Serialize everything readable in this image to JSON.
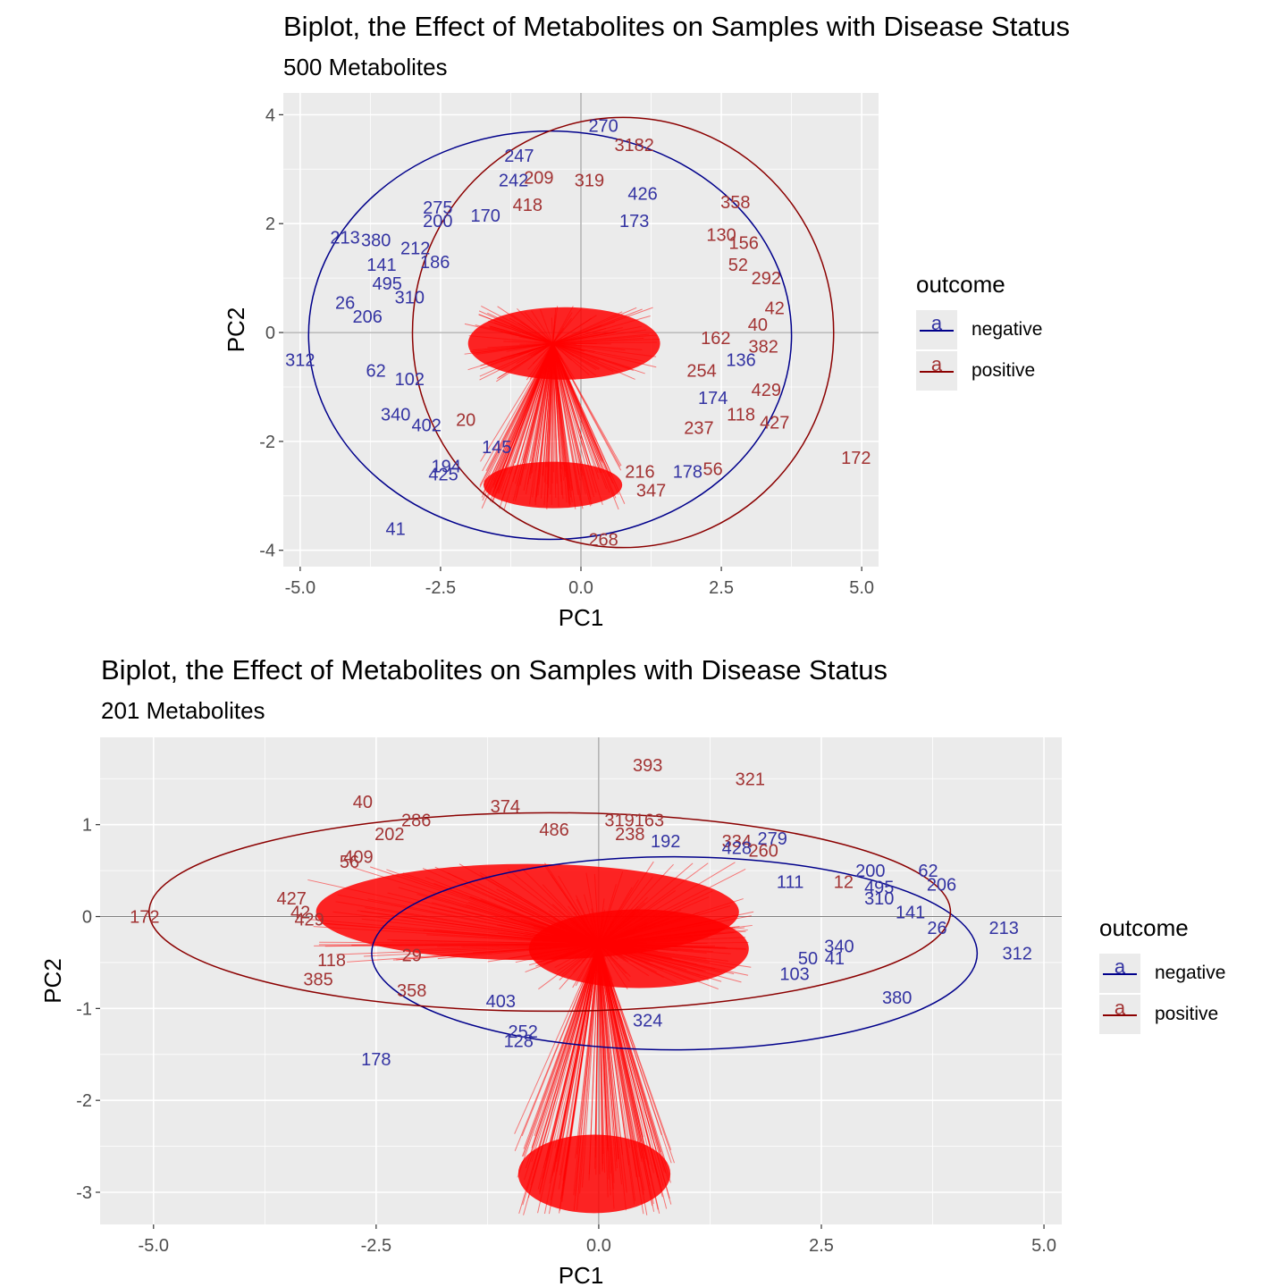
{
  "colors": {
    "negative": "#00008b",
    "positive": "#8b0000",
    "negative_label": "#3333a2",
    "positive_label": "#a23333",
    "arrow": "#ff0000",
    "panel": "#ebebeb",
    "grid": "#ffffff"
  },
  "charts": [
    {
      "title": "Biplot, the Effect of Metabolites on Samples with Disease Status",
      "subtitle": "500 Metabolites",
      "legend": {
        "title": "outcome",
        "key_glyph": "a",
        "items": [
          "negative",
          "positive"
        ]
      },
      "chart_data": {
        "type": "scatter",
        "xlabel": "PC1",
        "ylabel": "PC2",
        "xlim": [
          -5.3,
          5.3
        ],
        "ylim": [
          -4.3,
          4.4
        ],
        "xticks": [
          -5.0,
          -2.5,
          0.0,
          2.5,
          5.0
        ],
        "xtick_labels": [
          "-5.0",
          "-2.5",
          "0.0",
          "2.5",
          "5.0"
        ],
        "yticks": [
          -4,
          -2,
          0,
          2,
          4
        ],
        "ytick_labels": [
          "-4",
          "-2",
          "0",
          "2",
          "4"
        ],
        "ellipses": [
          {
            "group": "negative",
            "cx": -0.55,
            "cy": -0.05,
            "rx": 4.3,
            "ry": 3.75
          },
          {
            "group": "positive",
            "cx": 0.75,
            "cy": 0.0,
            "rx": 3.75,
            "ry": 3.95
          }
        ],
        "points": [
          {
            "label": "270",
            "x": 0.4,
            "y": 3.8,
            "group": "negative"
          },
          {
            "label": "3182",
            "x": 0.95,
            "y": 3.45,
            "group": "positive"
          },
          {
            "label": "247",
            "x": -1.1,
            "y": 3.25,
            "group": "negative"
          },
          {
            "label": "242",
            "x": -1.2,
            "y": 2.8,
            "group": "negative"
          },
          {
            "label": "209",
            "x": -0.75,
            "y": 2.85,
            "group": "positive"
          },
          {
            "label": "319",
            "x": 0.15,
            "y": 2.8,
            "group": "positive"
          },
          {
            "label": "426",
            "x": 1.1,
            "y": 2.55,
            "group": "negative"
          },
          {
            "label": "358",
            "x": 2.75,
            "y": 2.4,
            "group": "positive"
          },
          {
            "label": "418",
            "x": -0.95,
            "y": 2.35,
            "group": "positive"
          },
          {
            "label": "173",
            "x": 0.95,
            "y": 2.05,
            "group": "negative"
          },
          {
            "label": "275",
            "x": -2.55,
            "y": 2.3,
            "group": "negative"
          },
          {
            "label": "200",
            "x": -2.55,
            "y": 2.05,
            "group": "negative"
          },
          {
            "label": "170",
            "x": -1.7,
            "y": 2.15,
            "group": "negative"
          },
          {
            "label": "213",
            "x": -4.2,
            "y": 1.75,
            "group": "negative"
          },
          {
            "label": "380",
            "x": -3.65,
            "y": 1.7,
            "group": "negative"
          },
          {
            "label": "212",
            "x": -2.95,
            "y": 1.55,
            "group": "negative"
          },
          {
            "label": "186",
            "x": -2.6,
            "y": 1.3,
            "group": "negative"
          },
          {
            "label": "141",
            "x": -3.55,
            "y": 1.25,
            "group": "negative"
          },
          {
            "label": "156",
            "x": 2.9,
            "y": 1.65,
            "group": "positive"
          },
          {
            "label": "130",
            "x": 2.5,
            "y": 1.8,
            "group": "positive"
          },
          {
            "label": "52",
            "x": 2.8,
            "y": 1.25,
            "group": "positive"
          },
          {
            "label": "292",
            "x": 3.3,
            "y": 1.0,
            "group": "positive"
          },
          {
            "label": "495",
            "x": -3.45,
            "y": 0.9,
            "group": "negative"
          },
          {
            "label": "310",
            "x": -3.05,
            "y": 0.65,
            "group": "negative"
          },
          {
            "label": "26",
            "x": -4.2,
            "y": 0.55,
            "group": "negative"
          },
          {
            "label": "206",
            "x": -3.8,
            "y": 0.3,
            "group": "negative"
          },
          {
            "label": "42",
            "x": 3.45,
            "y": 0.45,
            "group": "positive"
          },
          {
            "label": "40",
            "x": 3.15,
            "y": 0.15,
            "group": "positive"
          },
          {
            "label": "162",
            "x": 2.4,
            "y": -0.1,
            "group": "positive"
          },
          {
            "label": "382",
            "x": 3.25,
            "y": -0.25,
            "group": "positive"
          },
          {
            "label": "136",
            "x": 2.85,
            "y": -0.5,
            "group": "negative"
          },
          {
            "label": "312",
            "x": -5.0,
            "y": -0.5,
            "group": "negative"
          },
          {
            "label": "62",
            "x": -3.65,
            "y": -0.7,
            "group": "negative"
          },
          {
            "label": "102",
            "x": -3.05,
            "y": -0.85,
            "group": "negative"
          },
          {
            "label": "254",
            "x": 2.15,
            "y": -0.7,
            "group": "positive"
          },
          {
            "label": "429",
            "x": 3.3,
            "y": -1.05,
            "group": "positive"
          },
          {
            "label": "174",
            "x": 2.35,
            "y": -1.2,
            "group": "negative"
          },
          {
            "label": "340",
            "x": -3.3,
            "y": -1.5,
            "group": "negative"
          },
          {
            "label": "402",
            "x": -2.75,
            "y": -1.7,
            "group": "negative"
          },
          {
            "label": "20",
            "x": -2.05,
            "y": -1.6,
            "group": "positive"
          },
          {
            "label": "118",
            "x": 2.85,
            "y": -1.5,
            "group": "positive"
          },
          {
            "label": "427",
            "x": 3.45,
            "y": -1.65,
            "group": "positive"
          },
          {
            "label": "237",
            "x": 2.1,
            "y": -1.75,
            "group": "positive"
          },
          {
            "label": "145",
            "x": -1.5,
            "y": -2.1,
            "group": "negative"
          },
          {
            "label": "172",
            "x": 4.9,
            "y": -2.3,
            "group": "positive"
          },
          {
            "label": "178",
            "x": 1.9,
            "y": -2.55,
            "group": "negative"
          },
          {
            "label": "56",
            "x": 2.35,
            "y": -2.5,
            "group": "positive"
          },
          {
            "label": "216",
            "x": 1.05,
            "y": -2.55,
            "group": "positive"
          },
          {
            "label": "194",
            "x": -2.4,
            "y": -2.45,
            "group": "negative"
          },
          {
            "label": "425",
            "x": -2.45,
            "y": -2.6,
            "group": "negative"
          },
          {
            "label": "347",
            "x": 1.25,
            "y": -2.9,
            "group": "positive"
          },
          {
            "label": "41",
            "x": -3.3,
            "y": -3.6,
            "group": "negative"
          },
          {
            "label": "268",
            "x": 0.4,
            "y": -3.8,
            "group": "positive"
          }
        ]
      }
    },
    {
      "title": "Biplot, the Effect of Metabolites on Samples with Disease Status",
      "subtitle": "201 Metabolites",
      "legend": {
        "title": "outcome",
        "key_glyph": "a",
        "items": [
          "negative",
          "positive"
        ]
      },
      "chart_data": {
        "type": "scatter",
        "xlabel": "PC1",
        "ylabel": "PC2",
        "xlim": [
          -5.6,
          5.2
        ],
        "ylim": [
          -3.35,
          1.95
        ],
        "xticks": [
          -5.0,
          -2.5,
          0.0,
          2.5,
          5.0
        ],
        "xtick_labels": [
          "-5.0",
          "-2.5",
          "0.0",
          "2.5",
          "5.0"
        ],
        "yticks": [
          -3,
          -2,
          -1,
          0,
          1
        ],
        "ytick_labels": [
          "-3",
          "-2",
          "-1",
          "0",
          "1"
        ],
        "ellipses": [
          {
            "group": "negative",
            "cx": 0.85,
            "cy": -0.4,
            "rx": 3.4,
            "ry": 1.05
          },
          {
            "group": "positive",
            "cx": -0.55,
            "cy": 0.05,
            "rx": 4.5,
            "ry": 1.08
          }
        ],
        "points": [
          {
            "label": "393",
            "x": 0.55,
            "y": 1.65,
            "group": "positive"
          },
          {
            "label": "321",
            "x": 1.7,
            "y": 1.5,
            "group": "positive"
          },
          {
            "label": "40",
            "x": -2.65,
            "y": 1.25,
            "group": "positive"
          },
          {
            "label": "374",
            "x": -1.05,
            "y": 1.2,
            "group": "positive"
          },
          {
            "label": "286",
            "x": -2.05,
            "y": 1.05,
            "group": "positive"
          },
          {
            "label": "202",
            "x": -2.35,
            "y": 0.9,
            "group": "positive"
          },
          {
            "label": "486",
            "x": -0.5,
            "y": 0.95,
            "group": "positive"
          },
          {
            "label": "319163",
            "x": 0.4,
            "y": 1.05,
            "group": "positive"
          },
          {
            "label": "238",
            "x": 0.35,
            "y": 0.9,
            "group": "positive"
          },
          {
            "label": "192",
            "x": 0.75,
            "y": 0.82,
            "group": "negative"
          },
          {
            "label": "334",
            "x": 1.55,
            "y": 0.82,
            "group": "positive"
          },
          {
            "label": "279",
            "x": 1.95,
            "y": 0.85,
            "group": "negative"
          },
          {
            "label": "428",
            "x": 1.55,
            "y": 0.75,
            "group": "negative"
          },
          {
            "label": "260",
            "x": 1.85,
            "y": 0.72,
            "group": "positive"
          },
          {
            "label": "409",
            "x": -2.7,
            "y": 0.65,
            "group": "positive"
          },
          {
            "label": "56",
            "x": -2.8,
            "y": 0.6,
            "group": "positive"
          },
          {
            "label": "200",
            "x": 3.05,
            "y": 0.5,
            "group": "negative"
          },
          {
            "label": "62",
            "x": 3.7,
            "y": 0.5,
            "group": "negative"
          },
          {
            "label": "206",
            "x": 3.85,
            "y": 0.35,
            "group": "negative"
          },
          {
            "label": "12",
            "x": 2.75,
            "y": 0.38,
            "group": "positive"
          },
          {
            "label": "111",
            "x": 2.15,
            "y": 0.38,
            "group": "negative"
          },
          {
            "label": "495",
            "x": 3.15,
            "y": 0.32,
            "group": "negative"
          },
          {
            "label": "310",
            "x": 3.15,
            "y": 0.2,
            "group": "negative"
          },
          {
            "label": "141",
            "x": 3.5,
            "y": 0.05,
            "group": "negative"
          },
          {
            "label": "427",
            "x": -3.45,
            "y": 0.2,
            "group": "positive"
          },
          {
            "label": "42",
            "x": -3.35,
            "y": 0.05,
            "group": "positive"
          },
          {
            "label": "429",
            "x": -3.25,
            "y": -0.03,
            "group": "positive"
          },
          {
            "label": "172",
            "x": -5.1,
            "y": 0.0,
            "group": "positive"
          },
          {
            "label": "26",
            "x": 3.8,
            "y": -0.12,
            "group": "negative"
          },
          {
            "label": "213",
            "x": 4.55,
            "y": -0.12,
            "group": "negative"
          },
          {
            "label": "312",
            "x": 4.7,
            "y": -0.4,
            "group": "negative"
          },
          {
            "label": "340",
            "x": 2.7,
            "y": -0.32,
            "group": "negative"
          },
          {
            "label": "50",
            "x": 2.35,
            "y": -0.45,
            "group": "negative"
          },
          {
            "label": "41",
            "x": 2.65,
            "y": -0.45,
            "group": "negative"
          },
          {
            "label": "103",
            "x": 2.2,
            "y": -0.62,
            "group": "negative"
          },
          {
            "label": "29",
            "x": -2.1,
            "y": -0.42,
            "group": "positive"
          },
          {
            "label": "118",
            "x": -3.0,
            "y": -0.47,
            "group": "positive"
          },
          {
            "label": "385",
            "x": -3.15,
            "y": -0.68,
            "group": "positive"
          },
          {
            "label": "358",
            "x": -2.1,
            "y": -0.8,
            "group": "positive"
          },
          {
            "label": "380",
            "x": 3.35,
            "y": -0.88,
            "group": "negative"
          },
          {
            "label": "403",
            "x": -1.1,
            "y": -0.92,
            "group": "negative"
          },
          {
            "label": "324",
            "x": 0.55,
            "y": -1.13,
            "group": "negative"
          },
          {
            "label": "252",
            "x": -0.85,
            "y": -1.25,
            "group": "negative"
          },
          {
            "label": "128",
            "x": -0.9,
            "y": -1.35,
            "group": "negative"
          },
          {
            "label": "178",
            "x": -2.5,
            "y": -1.55,
            "group": "negative"
          }
        ]
      }
    }
  ]
}
